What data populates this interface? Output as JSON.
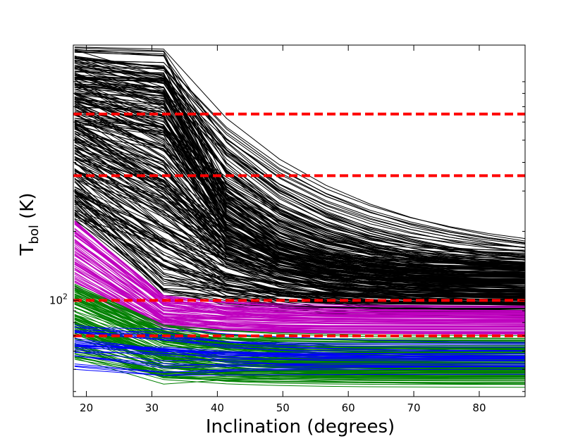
{
  "chart_data": {
    "type": "line",
    "title": "",
    "xlabel": "Inclination (degrees)",
    "ylabel_main": "T",
    "ylabel_sub": "bol",
    "ylabel_unit": " (K)",
    "xlim": [
      18,
      87
    ],
    "ylim": [
      38,
      1300
    ],
    "y_scale": "log",
    "x_ticks": [
      20,
      30,
      40,
      50,
      60,
      70,
      80
    ],
    "y_ticks": [
      {
        "value": 100,
        "base": "10",
        "exp": "2"
      }
    ],
    "grid": false,
    "inclinations": [
      18.2,
      31.8,
      41.4,
      49.5,
      56.6,
      63.3,
      69.5,
      75.5,
      81.4,
      87.1
    ],
    "thresholds": {
      "values": [
        70,
        100,
        350,
        650
      ],
      "color": "#ff0000",
      "style": "dashed"
    },
    "series_groups": [
      {
        "color": "#000000",
        "t18_range": [
          220,
          1280
        ],
        "t32_range": [
          90,
          1280
        ],
        "t87_range": [
          82,
          165
        ]
      },
      {
        "color": "#bf00bf",
        "t18_range": [
          110,
          225
        ],
        "t32_range": [
          72,
          105
        ],
        "t87_range": [
          69,
          95
        ]
      },
      {
        "color": "#008000",
        "t18_range": [
          55,
          120
        ],
        "t32_range": [
          42,
          78
        ],
        "t87_range": [
          41,
          70
        ]
      },
      {
        "color": "#0000ff",
        "t18_range": [
          48,
          80
        ],
        "t32_range": [
          46,
          75
        ],
        "t87_range": [
          45,
          67
        ]
      }
    ]
  }
}
